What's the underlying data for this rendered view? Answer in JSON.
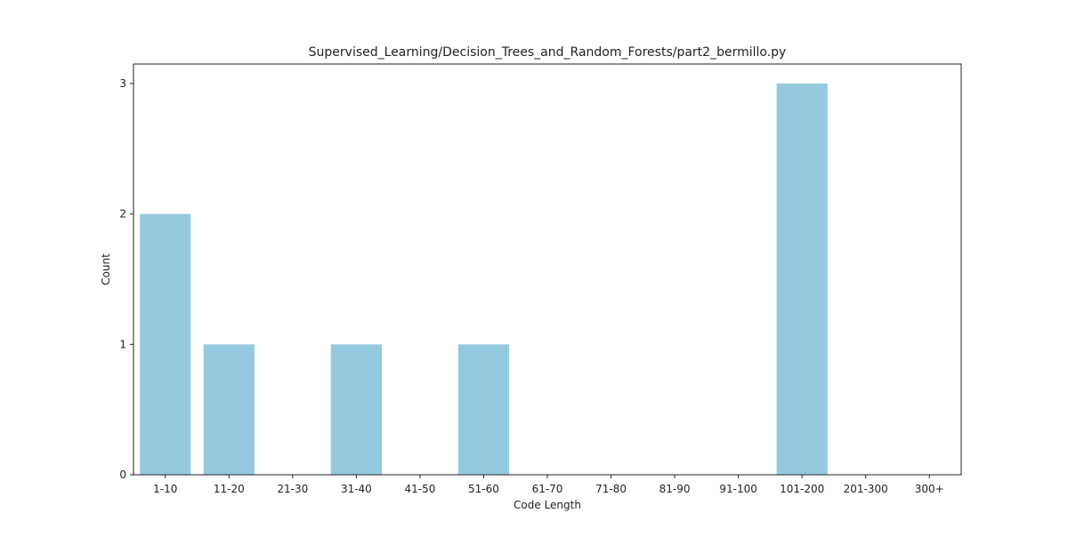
{
  "chart_data": {
    "type": "bar",
    "title": "Supervised_Learning/Decision_Trees_and_Random_Forests/part2_bermillo.py",
    "xlabel": "Code Length",
    "ylabel": "Count",
    "categories": [
      "1-10",
      "11-20",
      "21-30",
      "31-40",
      "41-50",
      "51-60",
      "61-70",
      "71-80",
      "81-90",
      "91-100",
      "101-200",
      "201-300",
      "300+"
    ],
    "values": [
      2,
      1,
      0,
      1,
      0,
      1,
      0,
      0,
      0,
      0,
      3,
      0,
      0
    ],
    "ylim": [
      0,
      3.15
    ],
    "yticks": [
      0,
      1,
      2,
      3
    ],
    "grid": false,
    "bar_color": "#94c9df"
  }
}
